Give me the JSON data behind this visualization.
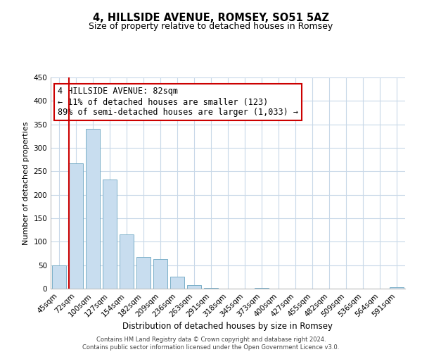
{
  "title": "4, HILLSIDE AVENUE, ROMSEY, SO51 5AZ",
  "subtitle": "Size of property relative to detached houses in Romsey",
  "xlabel": "Distribution of detached houses by size in Romsey",
  "ylabel": "Number of detached properties",
  "bar_labels": [
    "45sqm",
    "72sqm",
    "100sqm",
    "127sqm",
    "154sqm",
    "182sqm",
    "209sqm",
    "236sqm",
    "263sqm",
    "291sqm",
    "318sqm",
    "345sqm",
    "373sqm",
    "400sqm",
    "427sqm",
    "455sqm",
    "482sqm",
    "509sqm",
    "536sqm",
    "564sqm",
    "591sqm"
  ],
  "bar_values": [
    50,
    267,
    340,
    232,
    115,
    68,
    63,
    25,
    7,
    1,
    0,
    0,
    2,
    0,
    0,
    0,
    0,
    0,
    0,
    0,
    3
  ],
  "bar_color": "#c8ddef",
  "bar_edge_color": "#7aafc8",
  "vline_x_idx": 1,
  "vline_color": "#cc0000",
  "annotation_line1": "4 HILLSIDE AVENUE: 82sqm",
  "annotation_line2": "← 11% of detached houses are smaller (123)",
  "annotation_line3": "89% of semi-detached houses are larger (1,033) →",
  "annotation_box_color": "#ffffff",
  "annotation_box_edge": "#cc0000",
  "ylim": [
    0,
    450
  ],
  "yticks": [
    0,
    50,
    100,
    150,
    200,
    250,
    300,
    350,
    400,
    450
  ],
  "footer_line1": "Contains HM Land Registry data © Crown copyright and database right 2024.",
  "footer_line2": "Contains public sector information licensed under the Open Government Licence v3.0.",
  "bg_color": "#ffffff",
  "grid_color": "#c8d8e8",
  "title_fontsize": 10.5,
  "subtitle_fontsize": 9,
  "annotation_fontsize": 8.5,
  "ylabel_fontsize": 8,
  "xlabel_fontsize": 8.5,
  "footer_fontsize": 6
}
